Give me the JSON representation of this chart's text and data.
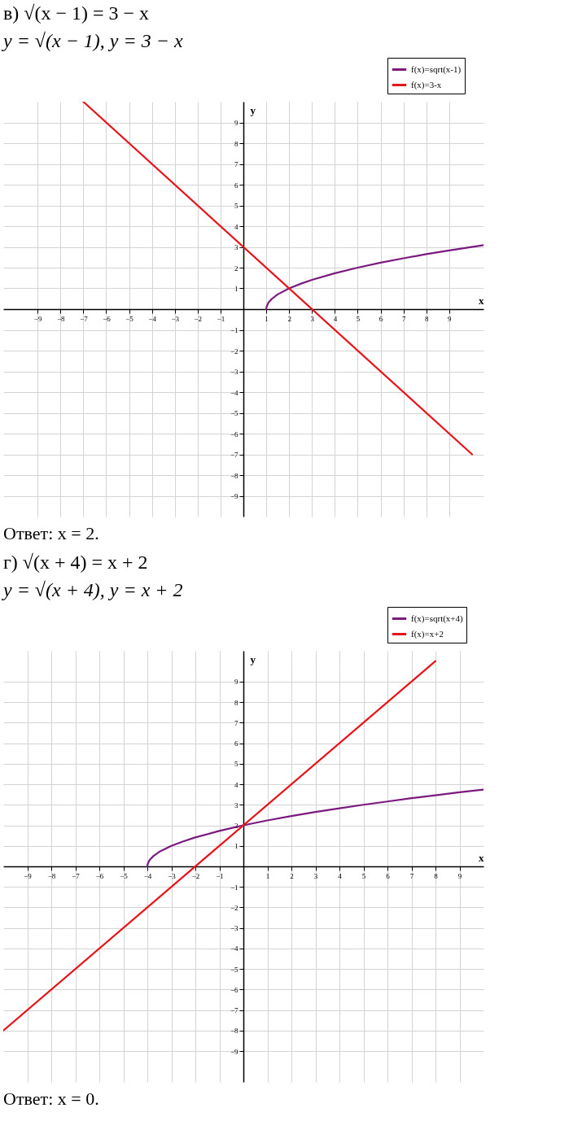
{
  "chart_data": [
    {
      "type": "line",
      "title": "в) √(x − 1) = 3 − x",
      "subtitle": "y = √(x − 1),      y = 3 − x",
      "xlabel": "x",
      "ylabel": "y",
      "xlim": [
        -10.5,
        10.5
      ],
      "ylim": [
        -10,
        10
      ],
      "xticks": [
        -9,
        -8,
        -7,
        -6,
        -5,
        -4,
        -3,
        -2,
        -1,
        1,
        2,
        3,
        4,
        5,
        6,
        7,
        8,
        9
      ],
      "yticks": [
        -9,
        -8,
        -7,
        -6,
        -5,
        -4,
        -3,
        -2,
        -1,
        1,
        2,
        3,
        4,
        5,
        6,
        7,
        8,
        9
      ],
      "grid": true,
      "legend": "top right",
      "series": [
        {
          "name": "f(x)=sqrt(x-1)",
          "color": "#7b1a7e",
          "x": [
            1,
            1.02,
            1.1,
            1.25,
            1.5,
            2,
            2.5,
            3,
            4,
            5,
            6,
            7,
            8,
            9,
            10.5
          ],
          "values": [
            0,
            0.14,
            0.32,
            0.5,
            0.71,
            1,
            1.22,
            1.41,
            1.73,
            2,
            2.24,
            2.45,
            2.65,
            2.83,
            3.08
          ]
        },
        {
          "name": "f(x)=3-x",
          "color": "#e8141b",
          "x": [
            -7,
            10
          ],
          "values": [
            10,
            -7
          ]
        }
      ],
      "annotations": [
        "Ответ: x = 2."
      ]
    },
    {
      "type": "line",
      "title": "г) √(x + 4) = x + 2",
      "subtitle": "y = √(x + 4),      y = x + 2",
      "xlabel": "x",
      "ylabel": "y",
      "xlim": [
        -10,
        10
      ],
      "ylim": [
        -10.5,
        10.5
      ],
      "xticks": [
        -9,
        -8,
        -7,
        -6,
        -5,
        -4,
        -3,
        -2,
        -1,
        1,
        2,
        3,
        4,
        5,
        6,
        7,
        8,
        9
      ],
      "yticks": [
        -9,
        -8,
        -7,
        -6,
        -5,
        -4,
        -3,
        -2,
        -1,
        1,
        2,
        3,
        4,
        5,
        6,
        7,
        8,
        9
      ],
      "grid": true,
      "legend": "top right",
      "series": [
        {
          "name": "f(x)=sqrt(x+4)",
          "color": "#7b1a7e",
          "x": [
            -4,
            -3.98,
            -3.9,
            -3.75,
            -3.5,
            -3,
            -2.5,
            -2,
            -1,
            0,
            1,
            2,
            3,
            4,
            5,
            6,
            7,
            8,
            9,
            10
          ],
          "values": [
            0,
            0.14,
            0.32,
            0.5,
            0.71,
            1,
            1.22,
            1.41,
            1.73,
            2,
            2.24,
            2.45,
            2.65,
            2.83,
            3,
            3.16,
            3.32,
            3.46,
            3.61,
            3.74
          ]
        },
        {
          "name": "f(x)=x+2",
          "color": "#e8141b",
          "x": [
            -10,
            8
          ],
          "values": [
            -8,
            10
          ]
        }
      ],
      "annotations": [
        "Ответ: x = 0."
      ]
    }
  ]
}
